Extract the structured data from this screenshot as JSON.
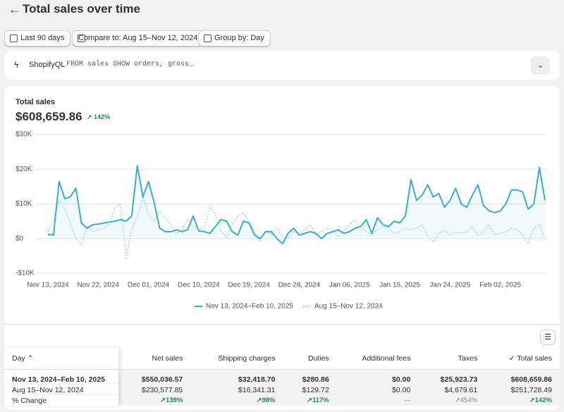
{
  "header": {
    "title": "Total sales over time"
  },
  "controls": {
    "date_range": "Last 90 days",
    "compare": "Compare to: Aug 15–Nov 12, 2024",
    "group": "Group by: Day"
  },
  "query": {
    "label": "ShopifyQL",
    "text": "FROM sales SHOW orders, gross_"
  },
  "summary": {
    "label": "Total sales",
    "value": "$608,659.86",
    "change": "142%"
  },
  "chart_data": {
    "type": "line",
    "categories": [
      "Nov 13, 2024",
      null,
      null,
      null,
      null,
      null,
      null,
      null,
      null,
      "Nov 22, 2024",
      null,
      null,
      null,
      null,
      null,
      null,
      null,
      null,
      "Dec 01, 2024",
      null,
      null,
      null,
      null,
      null,
      null,
      null,
      null,
      "Dec 10, 2024",
      null,
      null,
      null,
      null,
      null,
      null,
      null,
      null,
      "Dec 19, 2024",
      null,
      null,
      null,
      null,
      null,
      null,
      null,
      null,
      "Dec 28, 2024",
      null,
      null,
      null,
      null,
      null,
      null,
      null,
      null,
      "Jan 06, 2025",
      null,
      null,
      null,
      null,
      null,
      null,
      null,
      null,
      "Jan 15, 2025",
      null,
      null,
      null,
      null,
      null,
      null,
      null,
      null,
      "Jan 24, 2025",
      null,
      null,
      null,
      null,
      null,
      null,
      null,
      null,
      "Feb 02, 2025",
      null,
      null,
      null,
      null,
      null,
      null,
      null,
      null
    ],
    "series": [
      {
        "name": "Nov 13, 2024–Feb 10, 2025",
        "color": "#3aaecb",
        "style": "solid",
        "values": [
          1200,
          1000,
          16500,
          11500,
          12000,
          14500,
          4500,
          3000,
          4000,
          4200,
          4500,
          4800,
          5000,
          5500,
          5000,
          6500,
          21000,
          12000,
          16500,
          10500,
          3000,
          2000,
          2000,
          2500,
          2000,
          2500,
          6500,
          2200,
          2000,
          1500,
          3500,
          5500,
          5000,
          2000,
          1000,
          5000,
          4500,
          1000,
          0,
          2000,
          2000,
          0,
          -1500,
          1500,
          3000,
          1000,
          1500,
          2000,
          1500,
          0,
          1500,
          2000,
          2500,
          1500,
          2000,
          3000,
          3500,
          5500,
          1500,
          6000,
          4000,
          3500,
          5000,
          4500,
          6500,
          17000,
          11000,
          12500,
          15500,
          12000,
          13000,
          9000,
          11000,
          14500,
          10000,
          9000,
          12500,
          15500,
          9500,
          8000,
          7500,
          8000,
          10000,
          14000,
          14000,
          13500,
          8500,
          10000,
          20500,
          11000
        ]
      },
      {
        "name": "Aug 15–Nov 12, 2024",
        "color": "#7fcfe0",
        "style": "dotted",
        "values": [
          2000,
          5000,
          11000,
          8500,
          4500,
          0,
          -2000,
          3500,
          2000,
          2500,
          3000,
          4000,
          9000,
          10000,
          -6000,
          3000,
          6000,
          12000,
          7000,
          5000,
          8000,
          6000,
          4000,
          1500,
          2500,
          5500,
          3500,
          3000,
          2500,
          9500,
          7000,
          2000,
          500,
          4000,
          6500,
          7500,
          5000,
          2000,
          -1000,
          2500,
          1000,
          3000,
          500,
          0,
          2000,
          1500,
          2500,
          4000,
          1000,
          2000,
          3000,
          2500,
          500,
          2000,
          4000,
          5500,
          3000,
          2000,
          1000,
          2500,
          3500,
          3000,
          1500,
          2000,
          3000,
          2500,
          3000,
          4000,
          500,
          -1000,
          1500,
          2500,
          1000,
          2000,
          1500,
          2000,
          3500,
          1000,
          2000,
          4000,
          1000,
          1500,
          2000,
          3000,
          2500,
          1000,
          -1500,
          3000,
          4000,
          0
        ]
      }
    ],
    "ylim": [
      -10000,
      30000
    ],
    "yticks": [
      {
        "value": -10000,
        "label": "-$10K"
      },
      {
        "value": 0,
        "label": "$0"
      },
      {
        "value": 10000,
        "label": "$10K"
      },
      {
        "value": 20000,
        "label": "$20K"
      },
      {
        "value": 30000,
        "label": "$30K"
      }
    ],
    "grid": true
  },
  "table": {
    "columns": [
      "Day",
      "Net sales",
      "Shipping charges",
      "Duties",
      "Additional fees",
      "Taxes",
      "Total sales"
    ],
    "rows": [
      [
        "Nov 13, 2024–Feb 10, 2025",
        "$550,036.57",
        "$32,418.70",
        "$280.86",
        "$0.00",
        "$25,923.73",
        "$608,659.86"
      ],
      [
        "Aug 15–Nov 12, 2024",
        "$230,577.85",
        "$16,341.31",
        "$129.72",
        "$0.00",
        "$4,679.61",
        "$251,728.49"
      ],
      [
        "% Change",
        "139%",
        "98%",
        "117%",
        "—",
        "454%",
        "142%"
      ]
    ]
  }
}
